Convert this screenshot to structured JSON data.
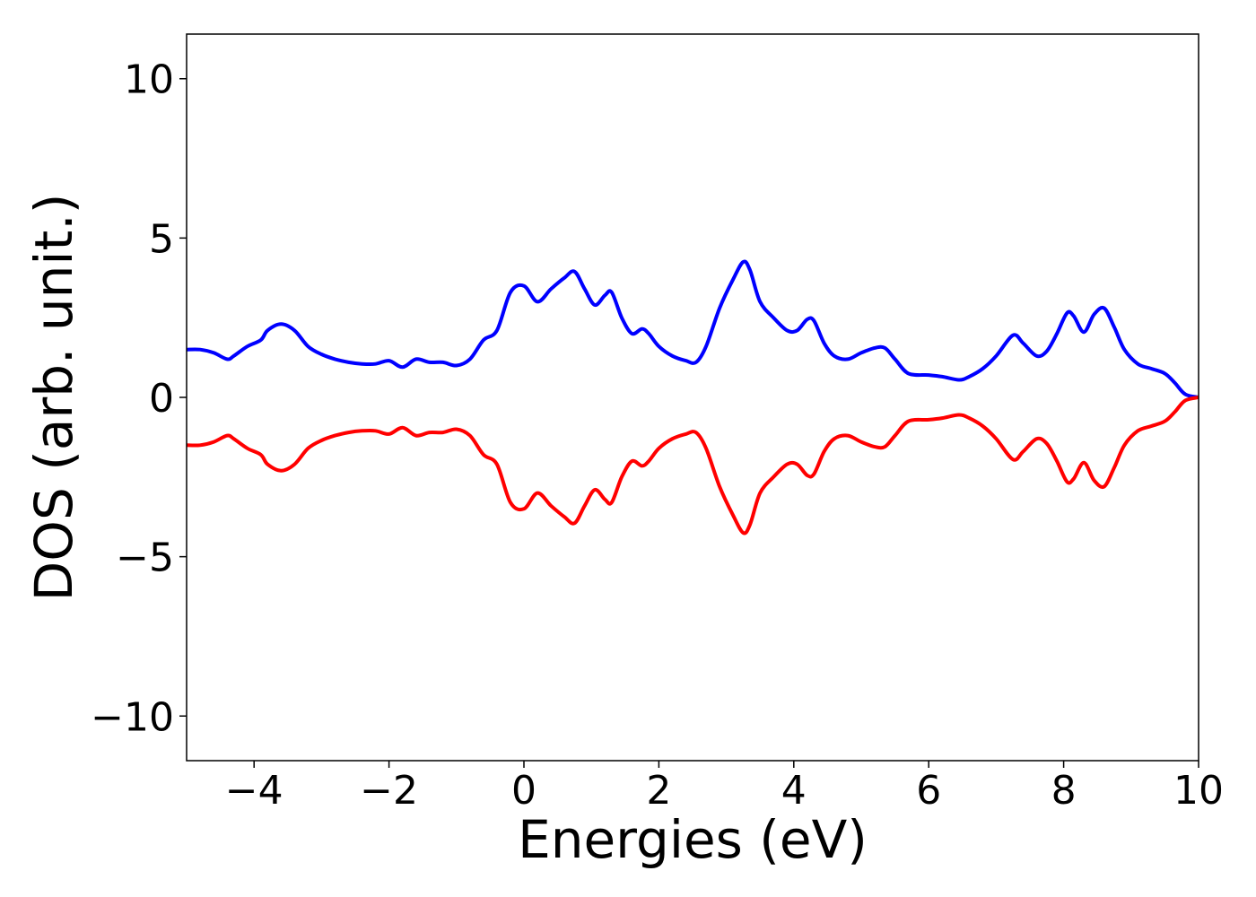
{
  "chart_data": {
    "type": "line",
    "title": "",
    "xlabel": "Energies (eV)",
    "ylabel": "DOS (arb. unit.)",
    "xlim": [
      -5,
      10
    ],
    "ylim": [
      -11.4,
      11.4
    ],
    "grid": false,
    "legend": "none",
    "x_ticks": [
      -4,
      -2,
      0,
      2,
      4,
      6,
      8,
      10
    ],
    "x_tick_labels": [
      "−4",
      "−2",
      "0",
      "2",
      "4",
      "6",
      "8",
      "10"
    ],
    "y_ticks": [
      10,
      5,
      0,
      -5,
      -10
    ],
    "y_tick_labels": [
      "10",
      "5",
      "0",
      "−5",
      "−10"
    ],
    "series": [
      {
        "color": "#0000ff",
        "x": [
          -5.0,
          -4.8,
          -4.6,
          -4.4,
          -4.3,
          -4.1,
          -3.9,
          -3.8,
          -3.6,
          -3.4,
          -3.2,
          -3.0,
          -2.8,
          -2.6,
          -2.4,
          -2.2,
          -2.0,
          -1.8,
          -1.6,
          -1.4,
          -1.2,
          -1.0,
          -0.8,
          -0.6,
          -0.4,
          -0.2,
          0.0,
          0.2,
          0.4,
          0.6,
          0.75,
          0.9,
          1.05,
          1.2,
          1.3,
          1.45,
          1.6,
          1.75,
          1.85,
          2.0,
          2.2,
          2.4,
          2.55,
          2.7,
          2.9,
          3.1,
          3.25,
          3.35,
          3.5,
          3.7,
          3.9,
          4.05,
          4.2,
          4.3,
          4.45,
          4.6,
          4.8,
          5.0,
          5.2,
          5.35,
          5.5,
          5.7,
          6.0,
          6.2,
          6.45,
          6.6,
          6.8,
          7.0,
          7.25,
          7.4,
          7.6,
          7.75,
          7.9,
          8.05,
          8.15,
          8.3,
          8.45,
          8.6,
          8.75,
          8.9,
          9.1,
          9.3,
          9.5,
          9.65,
          9.8,
          10.0
        ],
        "y": [
          1.5,
          1.5,
          1.4,
          1.2,
          1.3,
          1.6,
          1.8,
          2.1,
          2.3,
          2.1,
          1.6,
          1.35,
          1.2,
          1.1,
          1.05,
          1.05,
          1.15,
          0.95,
          1.2,
          1.1,
          1.1,
          1.0,
          1.2,
          1.8,
          2.1,
          3.3,
          3.5,
          3.0,
          3.4,
          3.75,
          3.95,
          3.4,
          2.9,
          3.2,
          3.3,
          2.5,
          2.0,
          2.15,
          2.0,
          1.6,
          1.3,
          1.15,
          1.1,
          1.6,
          2.8,
          3.7,
          4.25,
          4.0,
          3.0,
          2.5,
          2.1,
          2.1,
          2.45,
          2.4,
          1.7,
          1.3,
          1.2,
          1.4,
          1.55,
          1.55,
          1.2,
          0.75,
          0.7,
          0.65,
          0.55,
          0.65,
          0.9,
          1.3,
          1.95,
          1.7,
          1.3,
          1.45,
          2.0,
          2.65,
          2.55,
          2.05,
          2.6,
          2.8,
          2.2,
          1.5,
          1.05,
          0.9,
          0.75,
          0.45,
          0.1,
          0.0
        ]
      },
      {
        "color": "#ff0000",
        "x": [
          -5.0,
          -4.8,
          -4.6,
          -4.4,
          -4.3,
          -4.1,
          -3.9,
          -3.8,
          -3.6,
          -3.4,
          -3.2,
          -3.0,
          -2.8,
          -2.6,
          -2.4,
          -2.2,
          -2.0,
          -1.8,
          -1.6,
          -1.4,
          -1.2,
          -1.0,
          -0.8,
          -0.6,
          -0.4,
          -0.2,
          0.0,
          0.2,
          0.4,
          0.6,
          0.75,
          0.9,
          1.05,
          1.2,
          1.3,
          1.45,
          1.6,
          1.75,
          1.85,
          2.0,
          2.2,
          2.4,
          2.55,
          2.7,
          2.9,
          3.1,
          3.25,
          3.35,
          3.5,
          3.7,
          3.9,
          4.05,
          4.2,
          4.3,
          4.45,
          4.6,
          4.8,
          5.0,
          5.2,
          5.35,
          5.5,
          5.7,
          6.0,
          6.2,
          6.45,
          6.6,
          6.8,
          7.0,
          7.25,
          7.4,
          7.6,
          7.75,
          7.9,
          8.05,
          8.15,
          8.3,
          8.45,
          8.6,
          8.75,
          8.9,
          9.1,
          9.3,
          9.5,
          9.65,
          9.8,
          10.0
        ],
        "y": [
          -1.5,
          -1.5,
          -1.4,
          -1.2,
          -1.3,
          -1.6,
          -1.8,
          -2.1,
          -2.3,
          -2.1,
          -1.6,
          -1.35,
          -1.2,
          -1.1,
          -1.05,
          -1.05,
          -1.15,
          -0.95,
          -1.2,
          -1.1,
          -1.1,
          -1.0,
          -1.2,
          -1.8,
          -2.1,
          -3.3,
          -3.5,
          -3.0,
          -3.4,
          -3.75,
          -3.95,
          -3.4,
          -2.9,
          -3.2,
          -3.3,
          -2.5,
          -2.0,
          -2.15,
          -2.0,
          -1.6,
          -1.3,
          -1.15,
          -1.1,
          -1.6,
          -2.8,
          -3.7,
          -4.25,
          -4.0,
          -3.0,
          -2.5,
          -2.1,
          -2.1,
          -2.45,
          -2.4,
          -1.7,
          -1.3,
          -1.2,
          -1.4,
          -1.55,
          -1.55,
          -1.2,
          -0.75,
          -0.7,
          -0.65,
          -0.55,
          -0.65,
          -0.9,
          -1.3,
          -1.95,
          -1.7,
          -1.3,
          -1.45,
          -2.0,
          -2.65,
          -2.55,
          -2.05,
          -2.6,
          -2.8,
          -2.2,
          -1.5,
          -1.05,
          -0.9,
          -0.75,
          -0.45,
          -0.1,
          0.0
        ]
      }
    ]
  }
}
